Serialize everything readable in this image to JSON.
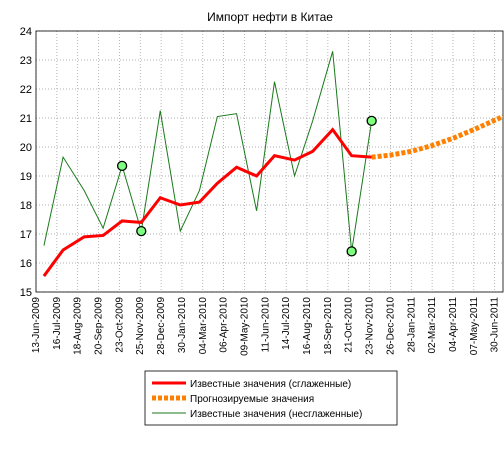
{
  "chart_data": {
    "type": "line",
    "title": "Импорт нефти в Китае",
    "xlim": [
      0,
      22.4
    ],
    "xticks": [
      {
        "value": 0,
        "label": "13-Jun-2009"
      },
      {
        "value": 1,
        "label": "16-Jul-2009"
      },
      {
        "value": 2,
        "label": "18-Aug-2009"
      },
      {
        "value": 3,
        "label": "20-Sep-2009"
      },
      {
        "value": 4,
        "label": "23-Oct-2009"
      },
      {
        "value": 5,
        "label": "25-Nov-2009"
      },
      {
        "value": 6,
        "label": "28-Dec-2009"
      },
      {
        "value": 7,
        "label": "30-Jan-2010"
      },
      {
        "value": 8,
        "label": "04-Mar-2010"
      },
      {
        "value": 9,
        "label": "06-Apr-2010"
      },
      {
        "value": 10,
        "label": "09-May-2010"
      },
      {
        "value": 11,
        "label": "11-Jun-2010"
      },
      {
        "value": 12,
        "label": "14-Jul-2010"
      },
      {
        "value": 13,
        "label": "16-Aug-2010"
      },
      {
        "value": 14,
        "label": "18-Sep-2010"
      },
      {
        "value": 15,
        "label": "21-Oct-2010"
      },
      {
        "value": 16,
        "label": "23-Nov-2010"
      },
      {
        "value": 17,
        "label": "26-Dec-2010"
      },
      {
        "value": 18,
        "label": "28-Jan-2011"
      },
      {
        "value": 19,
        "label": "02-Mar-2011"
      },
      {
        "value": 20,
        "label": "04-Apr-2011"
      },
      {
        "value": 21,
        "label": "07-May-2011"
      },
      {
        "value": 22,
        "label": "30-Jun-2011"
      }
    ],
    "ylim": [
      15,
      24
    ],
    "yticks": [
      15,
      16,
      17,
      18,
      19,
      20,
      21,
      22,
      23,
      24
    ],
    "grid": true,
    "series": [
      {
        "name": "Известные значения (сглаженные)",
        "color": "#ff0000",
        "style": "thick",
        "x": [
          0.38,
          1.3,
          2.31,
          3.22,
          4.13,
          5.05,
          5.96,
          6.92,
          7.84,
          8.7,
          9.62,
          10.58,
          11.44,
          12.4,
          13.27,
          14.23,
          15.14,
          16.1
        ],
        "values": [
          15.55,
          16.45,
          16.9,
          16.95,
          17.45,
          17.4,
          18.25,
          18.0,
          18.1,
          18.75,
          19.3,
          19.0,
          19.7,
          19.55,
          19.85,
          20.6,
          19.7,
          19.65
        ]
      },
      {
        "name": "Прогнозируемые значения",
        "color": "#ff8000",
        "style": "dashed",
        "x": [
          16.1,
          17,
          18,
          19,
          20,
          21,
          22.4
        ],
        "values": [
          19.65,
          19.72,
          19.85,
          20.05,
          20.3,
          20.6,
          21.05
        ]
      },
      {
        "name": "Известные значения (несглаженные)",
        "color": "#1a7a1a",
        "style": "thin",
        "x": [
          0.38,
          1.3,
          2.31,
          3.22,
          4.13,
          5.05,
          5.96,
          6.92,
          7.84,
          8.7,
          9.62,
          10.58,
          11.44,
          12.4,
          13.27,
          14.23,
          15.14,
          16.1
        ],
        "values": [
          16.6,
          19.65,
          18.5,
          17.2,
          19.35,
          17.1,
          21.25,
          17.1,
          18.5,
          21.05,
          21.15,
          17.8,
          22.25,
          19.0,
          20.9,
          23.3,
          16.4,
          20.9
        ]
      }
    ],
    "highlights": {
      "color": "#7fff7f",
      "x": [
        4.13,
        5.05,
        15.14,
        16.1
      ],
      "values": [
        19.35,
        17.1,
        16.4,
        20.9
      ]
    }
  }
}
